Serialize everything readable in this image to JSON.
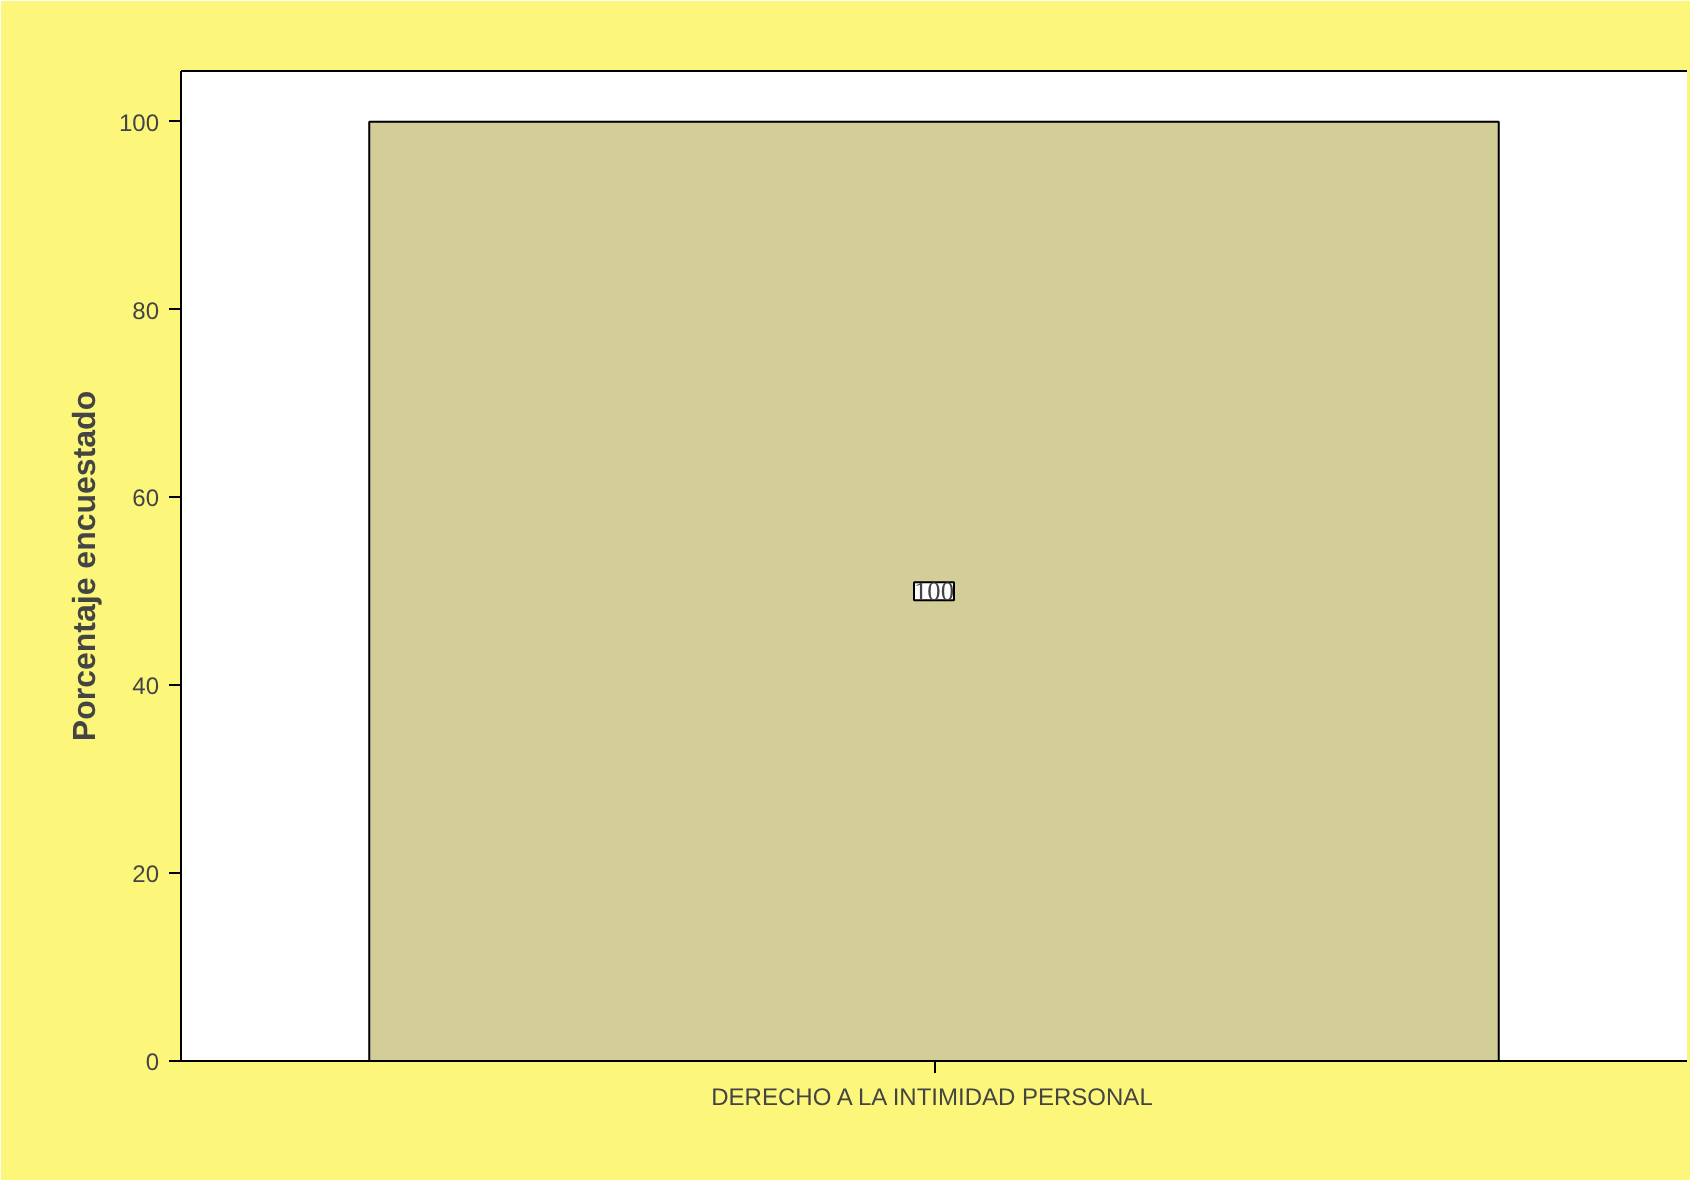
{
  "chart_data": {
    "type": "bar",
    "ylabel": "Porcentaje encuestado",
    "categories": [
      "DERECHO A LA INTIMIDAD PERSONAL"
    ],
    "values": [
      100
    ],
    "color": "#d3cd97",
    "ylim": [
      0,
      105.4
    ],
    "yticks": [
      0,
      20,
      40,
      60,
      80,
      100
    ],
    "data_labels": true,
    "grid": false
  }
}
